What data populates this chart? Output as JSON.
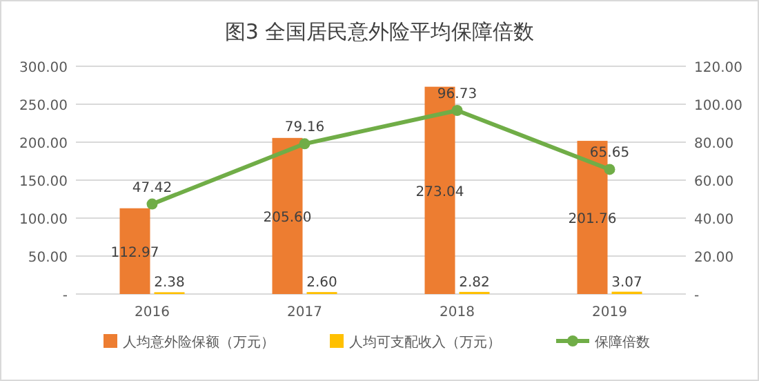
{
  "chart_data": {
    "type": "bar",
    "title": "图3 全国居民意外险平均保障倍数",
    "categories": [
      "2016",
      "2017",
      "2018",
      "2019"
    ],
    "series": [
      {
        "name": "人均意外险保额（万元）",
        "color": "#ed7d31",
        "values": [
          112.97,
          205.6,
          273.04,
          201.76
        ],
        "value_labels": [
          "112.97",
          "205.60",
          "273.04",
          "201.76"
        ]
      },
      {
        "name": "人均可支配收入（万元）",
        "color": "#ffc000",
        "values": [
          2.38,
          2.6,
          2.82,
          3.07
        ],
        "value_labels": [
          "2.38",
          "2.60",
          "2.82",
          "3.07"
        ]
      },
      {
        "name": "保障倍数",
        "type": "line",
        "axis": "y2",
        "color": "#70ad47",
        "marker": "circle",
        "values": [
          47.42,
          79.16,
          96.73,
          65.65
        ],
        "value_labels": [
          "47.42",
          "79.16",
          "96.73",
          "65.65"
        ]
      }
    ],
    "ylim": [
      0,
      300
    ],
    "yticks": [
      {
        "value": 0,
        "label": "-"
      },
      {
        "value": 50,
        "label": "50.00"
      },
      {
        "value": 100,
        "label": "100.00"
      },
      {
        "value": 150,
        "label": "150.00"
      },
      {
        "value": 200,
        "label": "200.00"
      },
      {
        "value": 250,
        "label": "250.00"
      },
      {
        "value": 300,
        "label": "300.00"
      }
    ],
    "y2lim": [
      0,
      120
    ],
    "y2ticks": [
      {
        "value": 0,
        "label": "-"
      },
      {
        "value": 20,
        "label": "20.00"
      },
      {
        "value": 40,
        "label": "40.00"
      },
      {
        "value": 60,
        "label": "60.00"
      },
      {
        "value": 80,
        "label": "80.00"
      },
      {
        "value": 100,
        "label": "100.00"
      },
      {
        "value": 120,
        "label": "120.00"
      }
    ],
    "grid": "y",
    "legend": "bottom"
  }
}
